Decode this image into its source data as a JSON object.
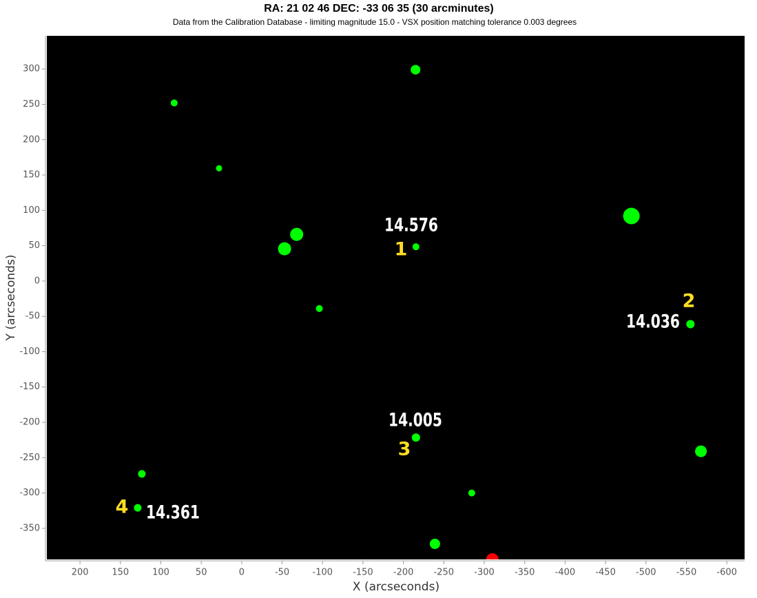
{
  "chart_data": {
    "type": "scatter",
    "title": "RA: 21 02 46  DEC: -33 06 35 (30 arcminutes)",
    "subtitle": "Data from the Calibration Database - limiting magnitude 15.0 - VSX position matching tolerance 0.003 degrees",
    "x_label": "X (arcseconds)",
    "y_label": "Y (arcseconds)",
    "xlim": [
      241,
      -622
    ],
    "ylim": [
      -394,
      347
    ],
    "xticks": [
      200,
      150,
      100,
      50,
      0,
      -50,
      -100,
      -150,
      -200,
      -250,
      -300,
      -350,
      -400,
      -450,
      -500,
      -550,
      -600
    ],
    "yticks": [
      300,
      250,
      200,
      150,
      100,
      50,
      0,
      -50,
      -100,
      -150,
      -200,
      -250,
      -300,
      -350
    ],
    "background": "#000000",
    "series": [
      {
        "color": "#00ff00",
        "x": [
          -215,
          83.5,
          28,
          -68,
          -53,
          -482,
          -215.5,
          -96,
          -555,
          -215.5,
          -568,
          123.5,
          -284.5,
          128.6,
          -239
        ],
        "values": [
          299,
          252,
          159.5,
          66,
          45.6,
          92,
          48.5,
          -39,
          -61,
          -221.5,
          -241,
          -273,
          -300,
          -321,
          -372
        ],
        "sizes": [
          7,
          5,
          4.5,
          9.5,
          9.5,
          12,
          5,
          5,
          6,
          6,
          8.5,
          5.5,
          5,
          5.5,
          7.5
        ]
      },
      {
        "color": "#ff0000",
        "x": [
          -310
        ],
        "values": [
          -394
        ],
        "sizes": [
          9
        ]
      }
    ],
    "annotations": [
      {
        "label": 1,
        "magnitude": 14.576
      },
      {
        "label": 2,
        "magnitude": 14.036
      },
      {
        "label": 3,
        "magnitude": 14.005
      },
      {
        "label": 4,
        "magnitude": 14.361
      }
    ],
    "label_color": "#ffdd22",
    "magnitude_color": "#ffffff"
  }
}
